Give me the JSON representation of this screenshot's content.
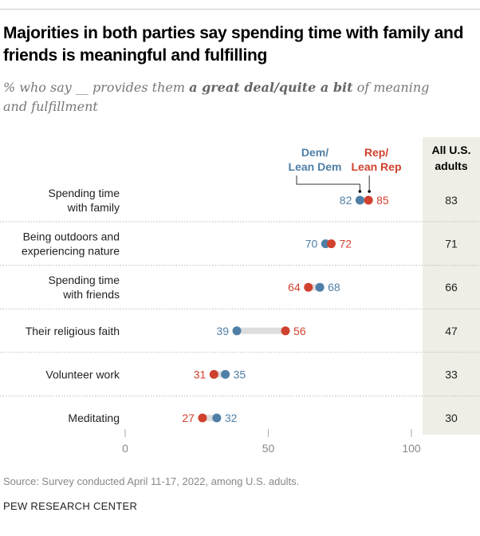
{
  "title": "Majorities in both parties say spending time with family and friends is meaningful and fulfilling",
  "subtitle_pre": "% who say __ provides them ",
  "subtitle_bold": "a great deal/quite a bit",
  "subtitle_post": " of meaning and fulfillment",
  "source": "Source: Survey conducted April 11-17, 2022, among U.S. adults.",
  "brand": "PEW RESEARCH CENTER",
  "colors": {
    "dem": "#4f7fa6",
    "rep": "#d0412e",
    "column_bg": "#eeeee6",
    "connector": "#dddddd"
  },
  "chart_data": {
    "type": "dot",
    "xlim": [
      0,
      100
    ],
    "xticks": [
      "0",
      "50",
      "100"
    ],
    "legend": {
      "dem": [
        "Dem/",
        "Lean Dem"
      ],
      "rep": [
        "Rep/",
        "Lean Rep"
      ]
    },
    "column_header": [
      "All U.S.",
      "adults"
    ],
    "categories": [
      {
        "label": [
          "Spending time",
          "with family"
        ],
        "dem": 82,
        "rep": 85,
        "all": 83
      },
      {
        "label": [
          "Being outdoors and",
          "experiencing nature"
        ],
        "dem": 70,
        "rep": 72,
        "all": 71
      },
      {
        "label": [
          "Spending time",
          "with friends"
        ],
        "dem": 68,
        "rep": 64,
        "all": 66
      },
      {
        "label": [
          "Their religious faith"
        ],
        "dem": 39,
        "rep": 56,
        "all": 47
      },
      {
        "label": [
          "Volunteer work"
        ],
        "dem": 35,
        "rep": 31,
        "all": 33
      },
      {
        "label": [
          "Meditating"
        ],
        "dem": 32,
        "rep": 27,
        "all": 30
      }
    ]
  }
}
